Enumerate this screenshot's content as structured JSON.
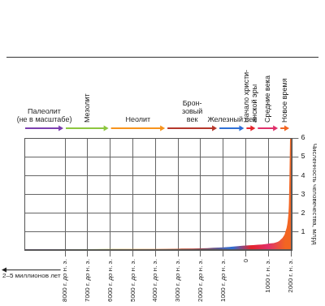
{
  "chart_data": {
    "type": "area",
    "y_label": "Численность человечества, млрд",
    "x": [
      -9800,
      -8000,
      -7000,
      -6000,
      -5000,
      -4000,
      -3000,
      -2000,
      -1000,
      0,
      1000,
      1500,
      1750,
      1800,
      1850,
      1900,
      1950,
      1975,
      2000
    ],
    "values": [
      0.003,
      0.005,
      0.007,
      0.01,
      0.015,
      0.02,
      0.03,
      0.05,
      0.1,
      0.2,
      0.3,
      0.45,
      0.8,
      1.0,
      1.2,
      1.6,
      2.5,
      4.0,
      6.0
    ],
    "xlim": [
      -9800,
      2050
    ],
    "xticks": [
      {
        "value": -8000,
        "label": "8000 г. до н. э."
      },
      {
        "value": -7000,
        "label": "7000 г. до н. э."
      },
      {
        "value": -6000,
        "label": "6000 г. до н. э."
      },
      {
        "value": -5000,
        "label": "5000 г. до н. э."
      },
      {
        "value": -4000,
        "label": "4000 г. до н. э."
      },
      {
        "value": -3000,
        "label": "3000 г. до н. э."
      },
      {
        "value": -2000,
        "label": "2000 г. до н. э."
      },
      {
        "value": -1000,
        "label": "1000 г. до н. э."
      },
      0,
      {
        "value": 1000,
        "label": "1000 г. н. э."
      },
      {
        "value": 2000,
        "label": "2000 г. н. э."
      }
    ],
    "ylim": [
      0,
      6
    ],
    "yticks": [
      1,
      2,
      3,
      4,
      5,
      6
    ],
    "grid": true,
    "tick_labels": true,
    "eras": [
      {
        "label": [
          "Палеолит",
          "(не в масштабе)"
        ],
        "start": -9800,
        "end": -8000,
        "color": "#7b3fb0"
      },
      {
        "label": [
          "Мезолит"
        ],
        "start": -8000,
        "end": -6000,
        "color": "#8dc63f"
      },
      {
        "label": [
          "Неолит"
        ],
        "start": -6000,
        "end": -3500,
        "color": "#f7941d"
      },
      {
        "label": [
          "Брон-",
          "зовый",
          "век"
        ],
        "start": -3500,
        "end": -1200,
        "color": "#b5362a"
      },
      {
        "label": [
          "Железный век"
        ],
        "start": -1200,
        "end": 0,
        "color": "#2e6fd6"
      },
      {
        "label": [
          "Начало христи-",
          "анской эры"
        ],
        "start": 0,
        "end": 500,
        "color": "#e4232b"
      },
      {
        "label": [
          "Средние века"
        ],
        "start": 500,
        "end": 1500,
        "color": "#e0306a"
      },
      {
        "label": [
          "Новое время"
        ],
        "start": 1500,
        "end": 2000,
        "color": "#f26522"
      }
    ],
    "annotations": [
      "2–5 миллионов лет"
    ]
  }
}
